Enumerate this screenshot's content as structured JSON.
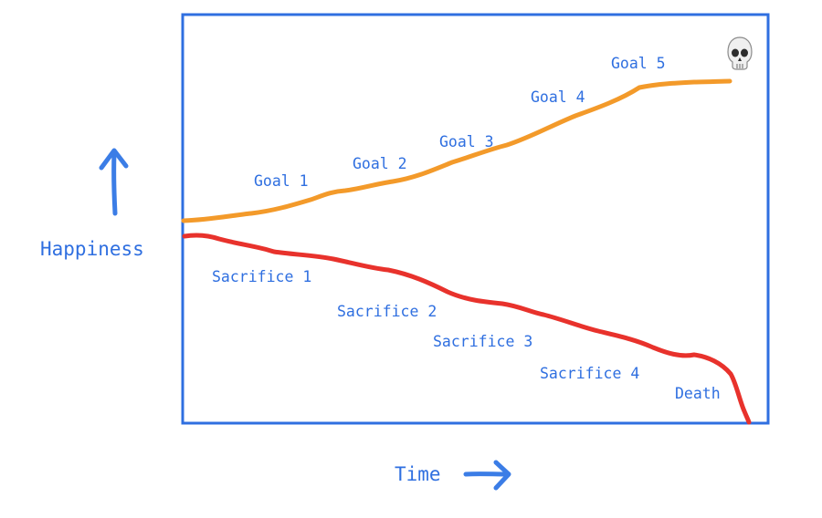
{
  "diagram": {
    "y_axis_label": "Happiness",
    "x_axis_label": "Time",
    "goal_labels": [
      "Goal 1",
      "Goal 2",
      "Goal 3",
      "Goal 4",
      "Goal 5"
    ],
    "sacrifice_labels": [
      "Sacrifice 1",
      "Sacrifice 2",
      "Sacrifice 3",
      "Sacrifice 4"
    ],
    "end_label": "Death",
    "end_icon": "skull-icon",
    "colors": {
      "frame": "#2f6fe0",
      "text": "#2f6fe0",
      "arrow": "#3b7de6",
      "goal_curve": "#f39a2a",
      "sacrifice_curve": "#e8322c"
    }
  }
}
